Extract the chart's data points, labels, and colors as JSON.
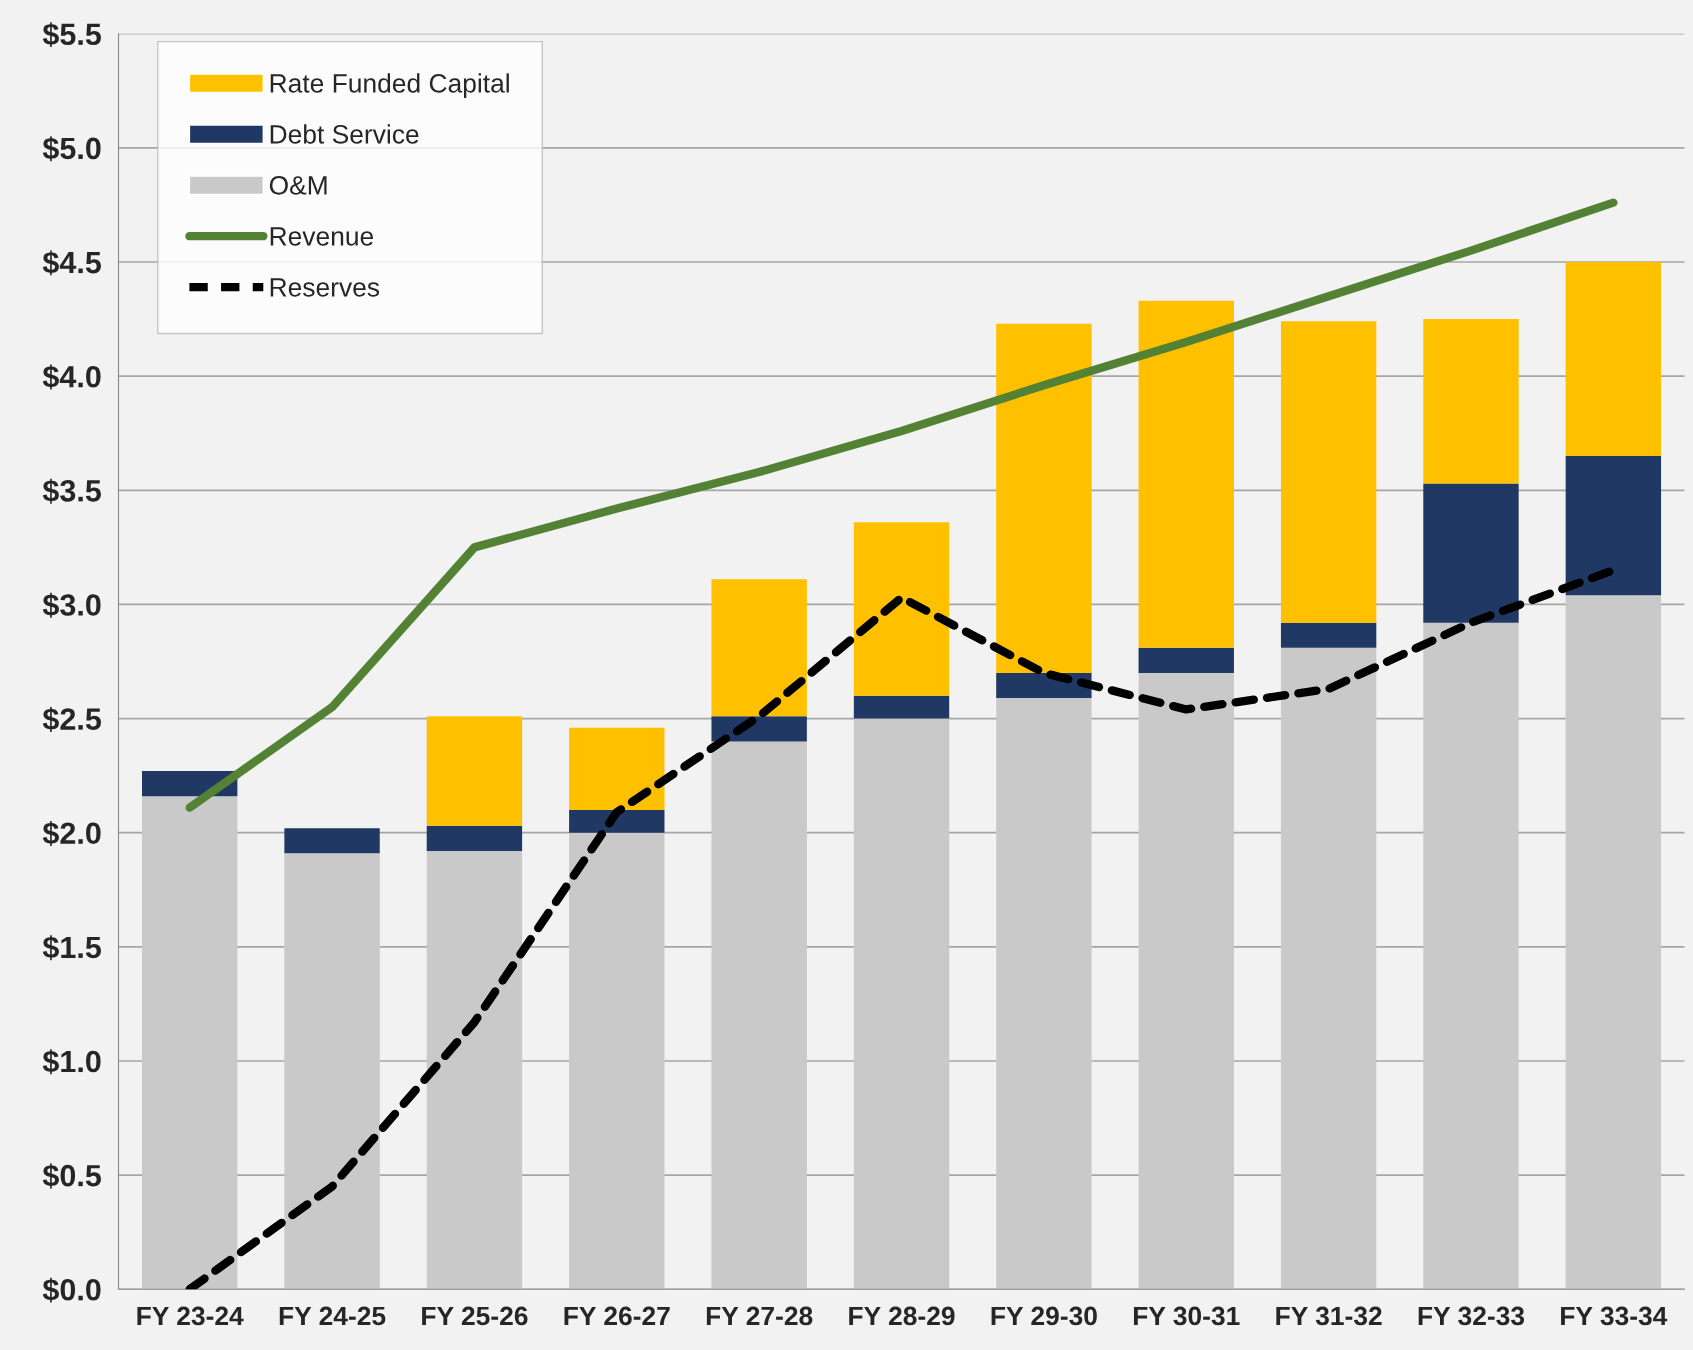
{
  "chart_data": {
    "type": "bar",
    "stacked": true,
    "categories": [
      "FY 23-24",
      "FY 24-25",
      "FY 25-26",
      "FY 26-27",
      "FY 27-28",
      "FY 28-29",
      "FY 29-30",
      "FY 30-31",
      "FY 31-32",
      "FY 32-33",
      "FY 33-34"
    ],
    "series": [
      {
        "name": "O&M",
        "color": "#c9c9c9",
        "values": [
          2.16,
          1.91,
          1.92,
          2.0,
          2.4,
          2.5,
          2.59,
          2.7,
          2.81,
          2.92,
          3.04
        ]
      },
      {
        "name": "Debt Service",
        "color": "#203864",
        "values": [
          0.11,
          0.11,
          0.11,
          0.1,
          0.11,
          0.1,
          0.11,
          0.11,
          0.11,
          0.61,
          0.61
        ]
      },
      {
        "name": "Rate Funded Capital",
        "color": "#ffc000",
        "values": [
          0,
          0,
          0.48,
          0.36,
          0.6,
          0.76,
          1.53,
          1.52,
          1.32,
          0.72,
          0.85
        ]
      },
      {
        "name": "Revenue",
        "type": "line",
        "color": "#548235",
        "line_style": "solid",
        "values": [
          2.11,
          2.55,
          3.25,
          3.42,
          3.58,
          3.76,
          3.96,
          4.15,
          4.35,
          4.55,
          4.76
        ]
      },
      {
        "name": "Reserves",
        "type": "line",
        "color": "#000000",
        "line_style": "dashed",
        "values": [
          0.0,
          0.45,
          1.17,
          2.09,
          2.51,
          3.03,
          2.7,
          2.54,
          2.63,
          2.92,
          3.15
        ]
      }
    ],
    "ylim": [
      0,
      5.5
    ],
    "yticks": [
      {
        "value": 0,
        "label": "$0.0"
      },
      {
        "value": 0.5,
        "label": "$0.5"
      },
      {
        "value": 1,
        "label": "$1.0"
      },
      {
        "value": 1.5,
        "label": "$1.5"
      },
      {
        "value": 2,
        "label": "$2.0"
      },
      {
        "value": 2.5,
        "label": "$2.5"
      },
      {
        "value": 3,
        "label": "$3.0"
      },
      {
        "value": 3.5,
        "label": "$3.5"
      },
      {
        "value": 4,
        "label": "$4.0"
      },
      {
        "value": 4.5,
        "label": "$4.5"
      },
      {
        "value": 5,
        "label": "$5.0"
      },
      {
        "value": 5.5,
        "label": "$5.5"
      }
    ],
    "grid": "y",
    "legend": "top left"
  }
}
